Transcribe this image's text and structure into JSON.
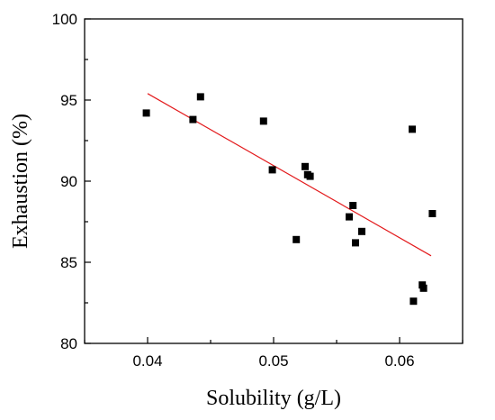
{
  "chart_data": {
    "type": "scatter",
    "title": "",
    "xlabel": "Solubility (g/L)",
    "ylabel": "Exhaustion (%)",
    "xlim": [
      0.035,
      0.065
    ],
    "ylim": [
      80,
      100
    ],
    "xticks": [
      0.04,
      0.05,
      0.06
    ],
    "xtick_labels": [
      "0.04",
      "0.05",
      "0.06"
    ],
    "yticks": [
      80,
      85,
      90,
      95,
      100
    ],
    "ytick_labels": [
      "80",
      "85",
      "90",
      "95",
      "100"
    ],
    "grid": false,
    "legend": "none",
    "series": [
      {
        "marker": "square",
        "color": "#000000",
        "points": [
          {
            "x": 0.0399,
            "y": 94.2
          },
          {
            "x": 0.0436,
            "y": 93.8
          },
          {
            "x": 0.0442,
            "y": 95.2
          },
          {
            "x": 0.0492,
            "y": 93.7
          },
          {
            "x": 0.0499,
            "y": 90.7
          },
          {
            "x": 0.0518,
            "y": 86.4
          },
          {
            "x": 0.0525,
            "y": 90.9
          },
          {
            "x": 0.0527,
            "y": 90.4
          },
          {
            "x": 0.0529,
            "y": 90.3
          },
          {
            "x": 0.056,
            "y": 87.8
          },
          {
            "x": 0.0563,
            "y": 88.5
          },
          {
            "x": 0.0565,
            "y": 86.2
          },
          {
            "x": 0.057,
            "y": 86.9
          },
          {
            "x": 0.061,
            "y": 93.2
          },
          {
            "x": 0.0611,
            "y": 82.6
          },
          {
            "x": 0.0618,
            "y": 83.6
          },
          {
            "x": 0.0619,
            "y": 83.4
          },
          {
            "x": 0.0626,
            "y": 88.0
          }
        ]
      }
    ],
    "fit_line": {
      "color": "#e31a1c",
      "points": [
        {
          "x": 0.04,
          "y": 95.4
        },
        {
          "x": 0.0625,
          "y": 85.4
        }
      ]
    }
  }
}
